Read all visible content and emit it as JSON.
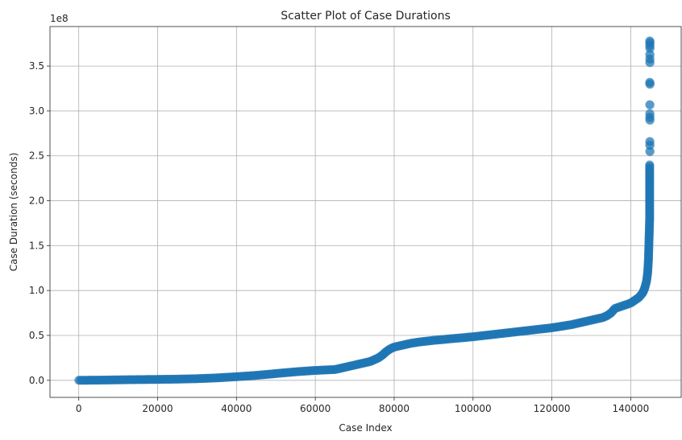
{
  "chart_data": {
    "type": "scatter",
    "title": "Scatter Plot of Case Durations",
    "xlabel": "Case Index",
    "ylabel": "Case Duration (seconds)",
    "y_offset_label": "1e8",
    "xlim": [
      -7300,
      152800
    ],
    "ylim": [
      -19000000,
      394000000
    ],
    "x_ticks": [
      0,
      20000,
      40000,
      60000,
      80000,
      100000,
      120000,
      140000
    ],
    "x_tick_labels": [
      "0",
      "20000",
      "40000",
      "60000",
      "80000",
      "100000",
      "120000",
      "140000"
    ],
    "y_ticks": [
      0,
      50000000,
      100000000,
      150000000,
      200000000,
      250000000,
      300000000,
      350000000
    ],
    "y_tick_labels": [
      "0.0",
      "0.5",
      "1.0",
      "1.5",
      "2.0",
      "2.5",
      "3.0",
      "3.5"
    ],
    "grid": true,
    "point_color": "#1f77b4",
    "point_alpha": 0.6,
    "series": [
      {
        "name": "Case Duration",
        "x": [
          0,
          5000,
          10000,
          15000,
          20000,
          25000,
          30000,
          35000,
          40000,
          45000,
          50000,
          55000,
          60000,
          65000,
          68000,
          70000,
          72000,
          74000,
          75000,
          76000,
          77000,
          78000,
          79000,
          80000,
          82000,
          84000,
          86000,
          88000,
          90000,
          95000,
          100000,
          105000,
          110000,
          115000,
          120000,
          125000,
          130000,
          133000,
          134000,
          135000,
          136000,
          138000,
          140000,
          141000,
          142000,
          143000,
          143500,
          144000,
          144300,
          144500,
          144600,
          144700,
          144800,
          144800,
          144800,
          144800,
          144800,
          144800,
          144800,
          144800,
          144800,
          144800,
          144800,
          144800,
          144800,
          144800,
          144800,
          144800,
          144800,
          144800,
          144800,
          144800,
          144800,
          144800,
          144800,
          144800,
          144800
        ],
        "y": [
          0,
          200000,
          500000,
          800000,
          1000000,
          1300000,
          1800000,
          2700000,
          4000000,
          5500000,
          7500000,
          9500000,
          11000000,
          12000000,
          15000000,
          17000000,
          19000000,
          21000000,
          23000000,
          25000000,
          28000000,
          32000000,
          35000000,
          37000000,
          39000000,
          41000000,
          42500000,
          43500000,
          44500000,
          46500000,
          48500000,
          51000000,
          53500000,
          56000000,
          58500000,
          62000000,
          67000000,
          70000000,
          72000000,
          75000000,
          80000000,
          83000000,
          86000000,
          89000000,
          92000000,
          97000000,
          102000000,
          110000000,
          120000000,
          135000000,
          150000000,
          165000000,
          180000000,
          190000000,
          200000000,
          210000000,
          220000000,
          225000000,
          230000000,
          235000000,
          240000000,
          255000000,
          262000000,
          266000000,
          290000000,
          293000000,
          297000000,
          307000000,
          330000000,
          332000000,
          354000000,
          358000000,
          363000000,
          370000000,
          373000000,
          376000000,
          378000000
        ]
      }
    ]
  }
}
